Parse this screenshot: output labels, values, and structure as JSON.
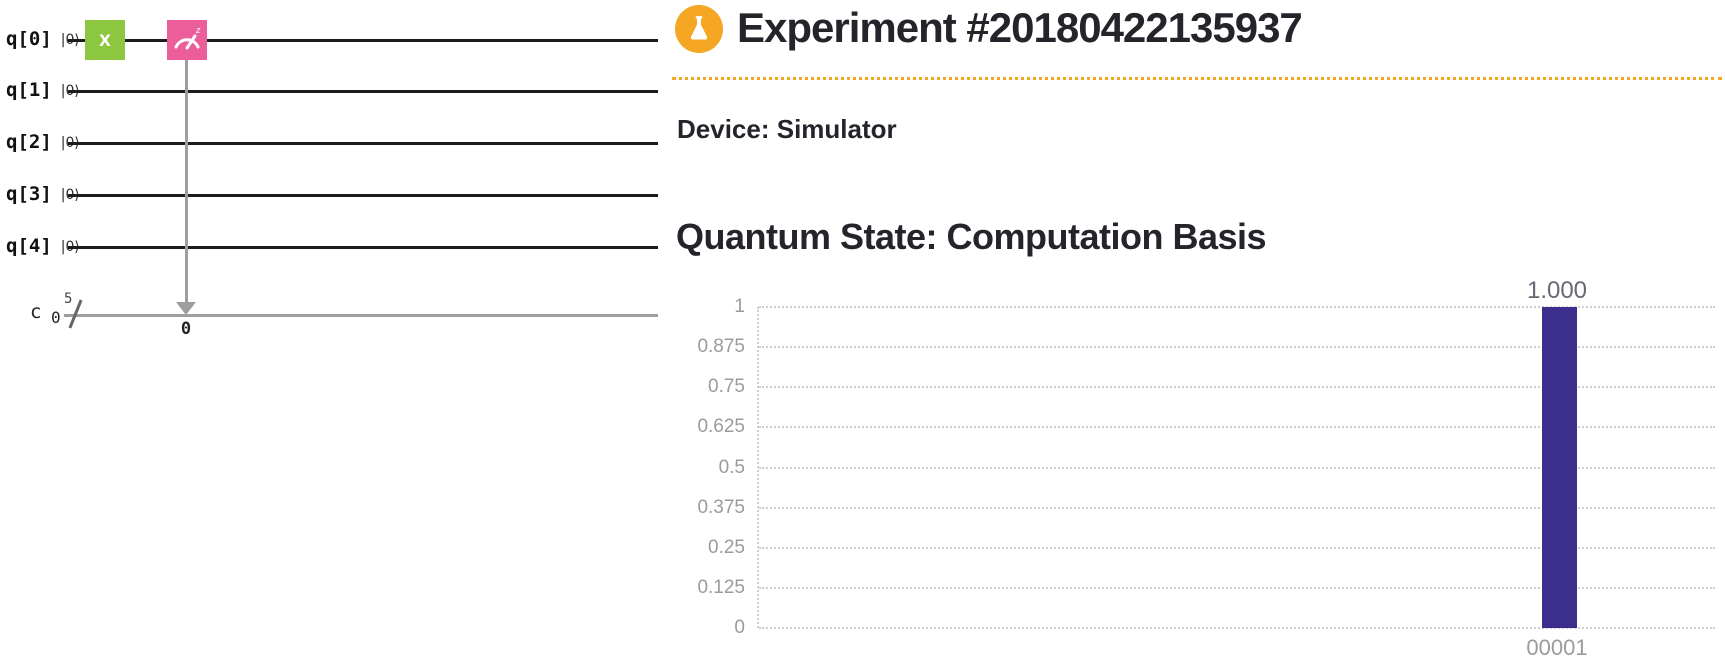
{
  "page": {
    "background": "#ffffff"
  },
  "header": {
    "icon": "flask-icon",
    "icon_color": "#f5a623",
    "title": "Experiment #20180422135937",
    "divider_color": "#f5a623"
  },
  "info": {
    "device_label": "Device: Simulator"
  },
  "section": {
    "heading": "Quantum State: Computation Basis"
  },
  "circuit": {
    "qubits": [
      {
        "label": "q[0]",
        "ket": "|0⟩"
      },
      {
        "label": "q[1]",
        "ket": "|0⟩"
      },
      {
        "label": "q[2]",
        "ket": "|0⟩"
      },
      {
        "label": "q[3]",
        "ket": "|0⟩"
      },
      {
        "label": "q[4]",
        "ket": "|0⟩"
      }
    ],
    "classical_register": {
      "label": "c",
      "index": "0",
      "bus_width": "5"
    },
    "x_gate": {
      "label": "x",
      "color": "#8dc63f",
      "qubit": "q[0]"
    },
    "measure_gate": {
      "superscript": "z",
      "color": "#ec5e9a",
      "qubit": "q[0]",
      "target_bit_label": "0"
    }
  },
  "chart_data": {
    "type": "bar",
    "title": "Quantum State: Computation Basis",
    "categories": [
      "00001"
    ],
    "values": [
      1.0
    ],
    "value_labels": [
      "1.000"
    ],
    "xlabel": "",
    "ylabel": "",
    "ylim": [
      0,
      1
    ],
    "yticks": [
      1,
      0.875,
      0.75,
      0.625,
      0.5,
      0.375,
      0.25,
      0.125,
      0
    ],
    "ytick_labels": [
      "1",
      "0.875",
      "0.75",
      "0.625",
      "0.5",
      "0.375",
      "0.25",
      "0.125",
      "0"
    ],
    "grid": "dotted-horizontal",
    "legend": "none",
    "bar_color": "#3b2e8c",
    "tick_color": "#9b9b9b"
  }
}
